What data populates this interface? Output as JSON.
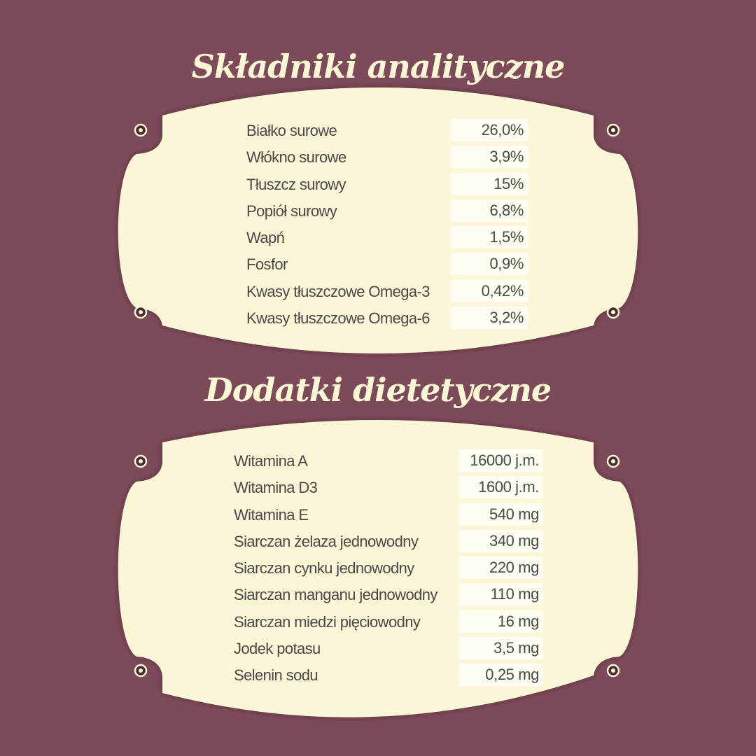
{
  "colors": {
    "background": "#7d4a5a",
    "plaque": "#fbf6d6",
    "text": "#4a4848",
    "title": "#fbf6d6"
  },
  "section1": {
    "title": "Składniki analityczne",
    "rows": [
      {
        "label": "Białko surowe",
        "value": "26,0%"
      },
      {
        "label": "Włókno surowe",
        "value": "3,9%"
      },
      {
        "label": "Tłuszcz surowy",
        "value": "15%"
      },
      {
        "label": "Popiół surowy",
        "value": "6,8%"
      },
      {
        "label": "Wapń",
        "value": "1,5%"
      },
      {
        "label": "Fosfor",
        "value": "0,9%"
      },
      {
        "label": "Kwasy tłuszczowe Omega-3",
        "value": "0,42%"
      },
      {
        "label": "Kwasy tłuszczowe Omega-6",
        "value": "3,2%"
      }
    ]
  },
  "section2": {
    "title": "Dodatki dietetyczne",
    "rows": [
      {
        "label": "Witamina A",
        "value": "16000 j.m."
      },
      {
        "label": "Witamina D3",
        "value": "1600 j.m."
      },
      {
        "label": "Witamina E",
        "value": "540 mg"
      },
      {
        "label": "Siarczan żelaza jednowodny",
        "value": "340 mg"
      },
      {
        "label": "Siarczan cynku jednowodny",
        "value": "220 mg"
      },
      {
        "label": "Siarczan manganu jednowodny",
        "value": "110 mg"
      },
      {
        "label": "Siarczan miedzi pięciowodny",
        "value": "16 mg"
      },
      {
        "label": "Jodek potasu",
        "value": "3,5 mg"
      },
      {
        "label": "Selenin sodu",
        "value": "0,25 mg"
      }
    ]
  }
}
